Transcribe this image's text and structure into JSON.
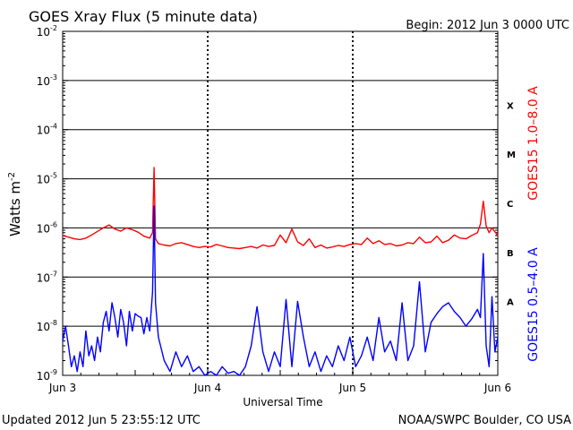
{
  "chart_data": {
    "type": "line",
    "title": "GOES Xray Flux (5 minute data)",
    "begin_label": "Begin:  2012 Jun 3 0000 UTC",
    "ylabel_main": "Watts m",
    "ylabel_exp": "-2",
    "xlabel": "Universal Time",
    "footer_left": "Updated 2012 Jun  5 23:55:12 UTC",
    "footer_right": "NOAA/SWPC Boulder, CO USA",
    "x_unit": "days since 2012 Jun 3 0000 UTC",
    "xlim": [
      0,
      3
    ],
    "ylim_exponent": [
      -9,
      -2
    ],
    "log_y": true,
    "x_ticks": [
      {
        "value": 0,
        "label": "Jun 3"
      },
      {
        "value": 1,
        "label": "Jun 4"
      },
      {
        "value": 2,
        "label": "Jun 5"
      },
      {
        "value": 3,
        "label": "Jun 6"
      }
    ],
    "y_ticks": [
      {
        "exp": -9,
        "label": "10",
        "sup": "-9"
      },
      {
        "exp": -8,
        "label": "10",
        "sup": "-8"
      },
      {
        "exp": -7,
        "label": "10",
        "sup": "-7"
      },
      {
        "exp": -6,
        "label": "10",
        "sup": "-6"
      },
      {
        "exp": -5,
        "label": "10",
        "sup": "-5"
      },
      {
        "exp": -4,
        "label": "10",
        "sup": "-4"
      },
      {
        "exp": -3,
        "label": "10",
        "sup": "-3"
      },
      {
        "exp": -2,
        "label": "10",
        "sup": "-2"
      }
    ],
    "flare_classes": [
      {
        "label": "A",
        "exp": -7.5
      },
      {
        "label": "B",
        "exp": -6.5
      },
      {
        "label": "C",
        "exp": -5.5
      },
      {
        "label": "M",
        "exp": -4.5
      },
      {
        "label": "X",
        "exp": -3.5
      }
    ],
    "class_gridlines_exp": [
      -8,
      -7,
      -6,
      -5,
      -4,
      -3
    ],
    "series": [
      {
        "name": "GOES15 1.0–8.0 A",
        "color": "#ff0000",
        "x": [
          0,
          0.04,
          0.08,
          0.12,
          0.16,
          0.2,
          0.24,
          0.28,
          0.32,
          0.36,
          0.4,
          0.44,
          0.48,
          0.52,
          0.56,
          0.6,
          0.62,
          0.63,
          0.64,
          0.66,
          0.7,
          0.74,
          0.78,
          0.82,
          0.86,
          0.9,
          0.94,
          0.98,
          1.02,
          1.06,
          1.1,
          1.14,
          1.18,
          1.22,
          1.26,
          1.3,
          1.34,
          1.38,
          1.42,
          1.46,
          1.5,
          1.54,
          1.58,
          1.62,
          1.66,
          1.7,
          1.74,
          1.78,
          1.82,
          1.86,
          1.9,
          1.94,
          1.98,
          2.02,
          2.06,
          2.1,
          2.14,
          2.18,
          2.22,
          2.26,
          2.3,
          2.34,
          2.38,
          2.42,
          2.46,
          2.5,
          2.54,
          2.58,
          2.62,
          2.66,
          2.7,
          2.74,
          2.78,
          2.82,
          2.86,
          2.88,
          2.9,
          2.92,
          2.94,
          2.96,
          3.0
        ],
        "y": [
          7e-07,
          6.5e-07,
          6e-07,
          5.8e-07,
          6.2e-07,
          7.2e-07,
          8.5e-07,
          1e-06,
          1.15e-06,
          9.5e-07,
          8.6e-07,
          1e-06,
          9.2e-07,
          8.2e-07,
          6.8e-07,
          6.2e-07,
          8e-07,
          1.7e-05,
          6e-07,
          4.8e-07,
          4.5e-07,
          4.3e-07,
          4.8e-07,
          5e-07,
          4.6e-07,
          4.2e-07,
          4e-07,
          4.2e-07,
          4.1e-07,
          4.6e-07,
          4.3e-07,
          4e-07,
          3.9e-07,
          3.8e-07,
          4e-07,
          4.2e-07,
          3.9e-07,
          4.5e-07,
          4.2e-07,
          4.4e-07,
          7.2e-07,
          5e-07,
          9.5e-07,
          5.2e-07,
          4.4e-07,
          6e-07,
          4e-07,
          4.5e-07,
          3.9e-07,
          4.1e-07,
          4.4e-07,
          4.2e-07,
          4.6e-07,
          4.8e-07,
          4.6e-07,
          6.2e-07,
          4.8e-07,
          5.5e-07,
          4.6e-07,
          4.8e-07,
          4.3e-07,
          4.5e-07,
          5e-07,
          4.8e-07,
          6.5e-07,
          5e-07,
          5.2e-07,
          6.8e-07,
          5e-07,
          5.6e-07,
          7.2e-07,
          6.2e-07,
          6e-07,
          7e-07,
          8e-07,
          1.2e-06,
          3.5e-06,
          1.1e-06,
          8e-07,
          1e-06,
          7e-07
        ]
      },
      {
        "name": "GOES15 0.5–4.0 A",
        "color": "#0000ff",
        "x": [
          0,
          0.02,
          0.04,
          0.06,
          0.08,
          0.1,
          0.12,
          0.14,
          0.16,
          0.18,
          0.2,
          0.22,
          0.24,
          0.26,
          0.28,
          0.3,
          0.32,
          0.34,
          0.36,
          0.38,
          0.4,
          0.42,
          0.44,
          0.46,
          0.48,
          0.5,
          0.52,
          0.54,
          0.56,
          0.58,
          0.6,
          0.62,
          0.63,
          0.64,
          0.66,
          0.7,
          0.74,
          0.78,
          0.82,
          0.86,
          0.9,
          0.94,
          0.98,
          1.02,
          1.06,
          1.1,
          1.14,
          1.18,
          1.22,
          1.26,
          1.3,
          1.34,
          1.38,
          1.42,
          1.46,
          1.5,
          1.54,
          1.58,
          1.62,
          1.66,
          1.7,
          1.74,
          1.78,
          1.82,
          1.86,
          1.9,
          1.94,
          1.98,
          2.02,
          2.06,
          2.1,
          2.14,
          2.18,
          2.22,
          2.26,
          2.3,
          2.34,
          2.38,
          2.42,
          2.46,
          2.5,
          2.54,
          2.58,
          2.62,
          2.66,
          2.7,
          2.74,
          2.78,
          2.82,
          2.86,
          2.88,
          2.9,
          2.92,
          2.94,
          2.96,
          2.98,
          3.0
        ],
        "y": [
          5e-09,
          1e-08,
          4e-09,
          1.5e-09,
          2.5e-09,
          1.2e-09,
          3e-09,
          1.5e-09,
          8e-09,
          2.5e-09,
          4e-09,
          2e-09,
          6e-09,
          3e-09,
          1.2e-08,
          2e-08,
          8e-09,
          3e-08,
          1.5e-08,
          6e-09,
          2.2e-08,
          1.2e-08,
          4e-09,
          2e-08,
          8e-09,
          1.8e-08,
          1.6e-08,
          1.5e-08,
          7e-09,
          1.5e-08,
          8e-09,
          5e-08,
          2.8e-06,
          3e-08,
          6e-09,
          2e-09,
          1.2e-09,
          3e-09,
          1.5e-09,
          2.5e-09,
          1.2e-09,
          1.5e-09,
          1e-09,
          1.2e-09,
          1e-09,
          1.5e-09,
          1.1e-09,
          1.2e-09,
          1e-09,
          1.5e-09,
          4e-09,
          2.5e-08,
          3e-09,
          1.2e-09,
          3e-09,
          1.5e-09,
          3.5e-08,
          1.5e-09,
          3.2e-08,
          6e-09,
          1.5e-09,
          3e-09,
          1.2e-09,
          2.5e-09,
          1.5e-09,
          4e-09,
          2e-09,
          6e-09,
          1.5e-09,
          2.5e-09,
          6e-09,
          2e-09,
          1.5e-08,
          3e-09,
          5e-09,
          2e-09,
          3e-08,
          2e-09,
          4e-09,
          8e-08,
          3e-09,
          1.2e-08,
          1.8e-08,
          2.5e-08,
          3e-08,
          2e-08,
          1.5e-08,
          1e-08,
          1.4e-08,
          2.2e-08,
          1.5e-08,
          3e-07,
          4e-09,
          1.5e-09,
          4e-08,
          3e-09,
          6e-09
        ]
      }
    ]
  }
}
